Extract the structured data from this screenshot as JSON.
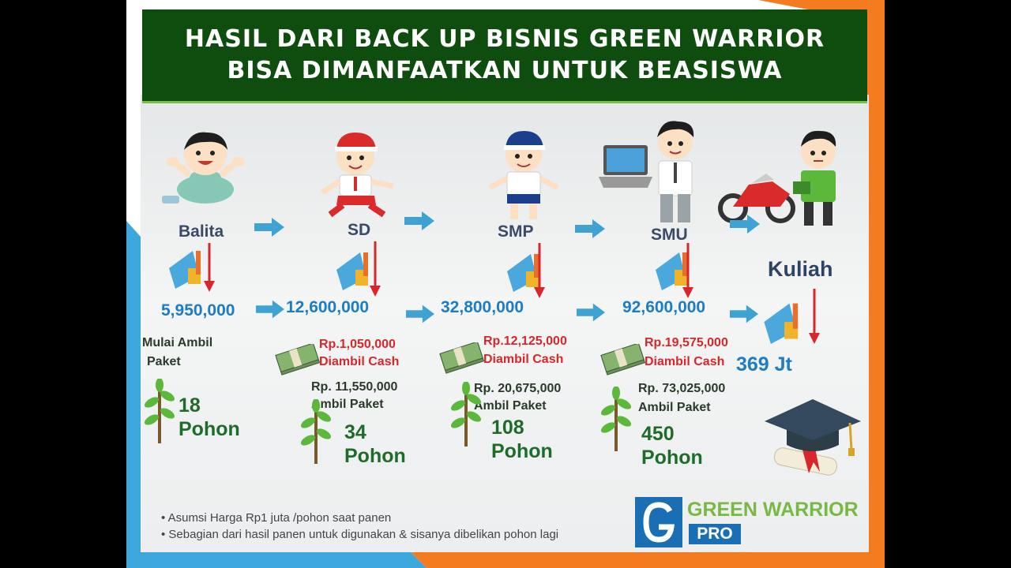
{
  "title": {
    "line1": "HASIL DARI BACK UP BISNIS GREEN WARRIOR",
    "line2": "BISA DIMANFAATKAN UNTUK BEASISWA"
  },
  "stages": [
    {
      "label": "Balita",
      "amount": "5,950,000",
      "action_line1": "Mulai Ambil",
      "action_line2": "Paket",
      "count": "18",
      "unit": "Pohon"
    },
    {
      "label": "SD",
      "amount": "12,600,000",
      "cash": "Rp.1,050,000",
      "cash_label": "Diambil Cash",
      "paket": "Rp. 11,550,000",
      "paket_label": "Ambil Paket",
      "count": "34",
      "unit": "Pohon"
    },
    {
      "label": "SMP",
      "amount": "32,800,000",
      "cash": "Rp.12,125,000",
      "cash_label": "Diambil Cash",
      "paket": "Rp. 20,675,000",
      "paket_label": "Ambil Paket",
      "count": "108",
      "unit": "Pohon"
    },
    {
      "label": "SMU",
      "amount": "92,600,000",
      "cash": "Rp.19,575,000",
      "cash_label": "Diambil Cash",
      "paket": "Rp. 73,025,000",
      "paket_label": "Ambil  Paket",
      "count": "450",
      "unit": "Pohon"
    }
  ],
  "final": {
    "label": "Kuliah",
    "amount": "369 Jt"
  },
  "notes": [
    "• Asumsi Harga Rp1 juta /pohon saat panen",
    "• Sebagian dari hasil panen untuk digunakan & sisanya dibelikan pohon lagi"
  ],
  "logo": {
    "name": "GREEN WARRIOR",
    "tag": "PRO"
  },
  "colors": {
    "title_bg": "#0f4d0f",
    "amount": "#1d7cc4",
    "cash": "#d9262b",
    "tree_text": "#1f6b2a",
    "arrow": "#3ea3d3",
    "logo_green": "#78b943",
    "logo_blue": "#1a6fb4"
  },
  "icons": [
    "child-icon",
    "money-chart-icon",
    "down-arrow-icon",
    "right-arrow-icon",
    "cash-bundle-icon",
    "tree-icon",
    "graduation-cap-icon",
    "laptop-icon",
    "motorcycle-icon",
    "logo-icon"
  ]
}
